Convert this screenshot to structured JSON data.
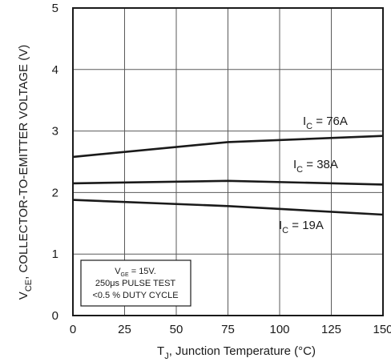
{
  "chart_data": {
    "type": "line",
    "title": "",
    "xlabel": {
      "main": "T",
      "sub": "J",
      "rest": ", Junction Temperature (°C)"
    },
    "ylabel": {
      "main": "V",
      "sub": "CE",
      "rest": ", COLLECTOR-TO-EMITTER VOLTAGE (V)"
    },
    "xlim": [
      0,
      150
    ],
    "ylim": [
      0,
      5
    ],
    "x_ticks": [
      "0",
      "25",
      "50",
      "75",
      "100",
      "125",
      "150"
    ],
    "y_ticks": [
      "0",
      "1",
      "2",
      "3",
      "4",
      "5"
    ],
    "grid": true,
    "x": [
      0,
      75,
      150
    ],
    "series": [
      {
        "name": {
          "main": "I",
          "sub": "C",
          "rest": " = 76A"
        },
        "values": [
          2.58,
          2.82,
          2.92
        ]
      },
      {
        "name": {
          "main": "I",
          "sub": "C",
          "rest": " = 38A"
        },
        "values": [
          2.15,
          2.19,
          2.13
        ]
      },
      {
        "name": {
          "main": "I",
          "sub": "C",
          "rest": " = 19A"
        },
        "values": [
          1.88,
          1.78,
          1.64
        ]
      }
    ],
    "note": {
      "line1": {
        "main": "V",
        "sub": "GE",
        "rest": " = 15V."
      },
      "line2": "250μs PULSE TEST",
      "line3": "<0.5 % DUTY CYCLE"
    }
  }
}
